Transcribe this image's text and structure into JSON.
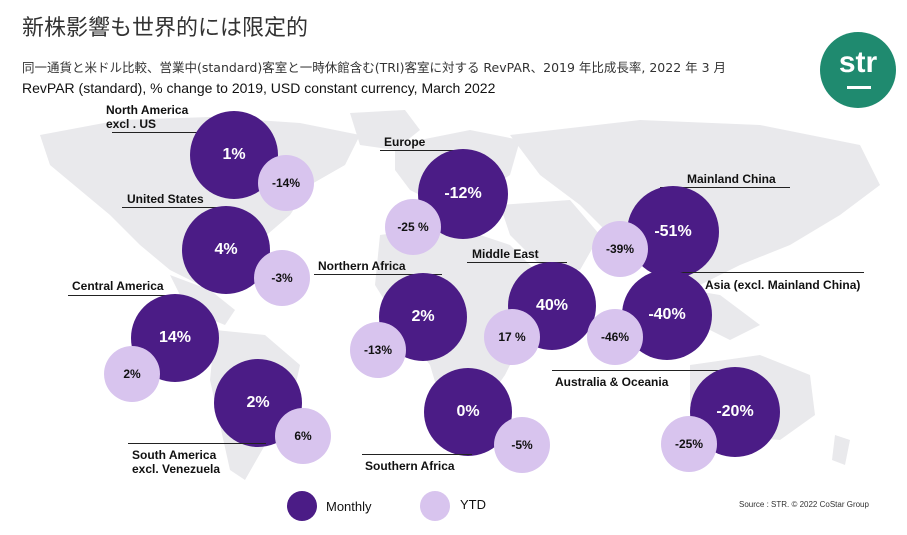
{
  "header": {
    "title": "新株影響も世界的には限定的",
    "subtitle_ja": "同一通貨と米ドル比較、営業中(standard)客室と一時休館含む(TRI)客室に対する RevPAR、2019 年比成長率, 2022 年 3 月",
    "subtitle_en": "RevPAR (standard), % change to 2019, USD constant currency, March 2022"
  },
  "logo": {
    "text": "str"
  },
  "legend": {
    "monthly": "Monthly",
    "ytd": "YTD"
  },
  "colors": {
    "monthly": "#4b1c86",
    "ytd": "#d8c4ee",
    "logo": "#1f8a6f",
    "map": "#e9e9ec"
  },
  "source": "Source : STR. © 2022 CoStar Group",
  "chart_data": {
    "type": "bubble-map",
    "series": [
      {
        "name": "Monthly"
      },
      {
        "name": "YTD"
      }
    ],
    "regions": [
      {
        "name": "North America excl . US",
        "label_lines": [
          "North America",
          "excl . US"
        ],
        "monthly": "1%",
        "ytd": "-14%"
      },
      {
        "name": "United States",
        "label_lines": [
          "United States"
        ],
        "monthly": "4%",
        "ytd": "-3%"
      },
      {
        "name": "Central America",
        "label_lines": [
          "Central America"
        ],
        "monthly": "14%",
        "ytd": "2%"
      },
      {
        "name": "South America excl. Venezuela",
        "label_lines": [
          "South America",
          "excl. Venezuela"
        ],
        "monthly": "2%",
        "ytd": "6%"
      },
      {
        "name": "Europe",
        "label_lines": [
          "Europe"
        ],
        "monthly": "-12%",
        "ytd": "-25 %"
      },
      {
        "name": "Northern Africa",
        "label_lines": [
          "Northern Africa"
        ],
        "monthly": "2%",
        "ytd": "-13%"
      },
      {
        "name": "Southern Africa",
        "label_lines": [
          "Southern Africa"
        ],
        "monthly": "0%",
        "ytd": "-5%"
      },
      {
        "name": "Middle East",
        "label_lines": [
          "Middle East"
        ],
        "monthly": "40%",
        "ytd": "17 %"
      },
      {
        "name": "Mainland China",
        "label_lines": [
          "Mainland China"
        ],
        "monthly": "-51%",
        "ytd": "-39%"
      },
      {
        "name": "Asia (excl. Mainland China)",
        "label_lines": [
          "Asia (excl. Mainland China)"
        ],
        "monthly": "-40%",
        "ytd": "-46%"
      },
      {
        "name": "Australia & Oceania",
        "label_lines": [
          "Australia & Oceania"
        ],
        "monthly": "-20%",
        "ytd": "-25%"
      }
    ]
  }
}
